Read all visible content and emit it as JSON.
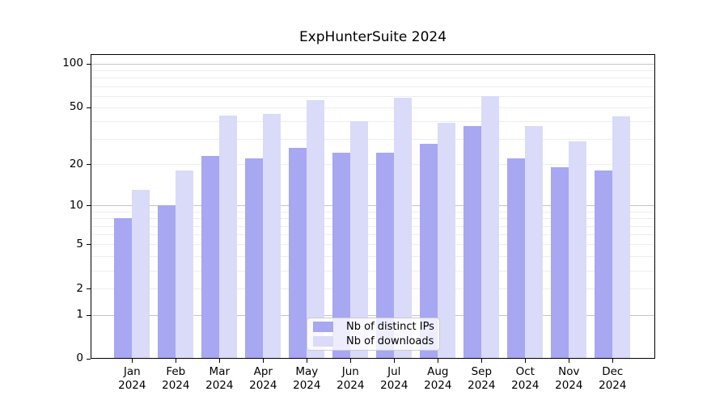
{
  "chart_data": {
    "type": "bar",
    "title": "ExpHunterSuite 2024",
    "scale": "log1p",
    "categories": [
      "Jan 2024",
      "Feb 2024",
      "Mar 2024",
      "Apr 2024",
      "May 2024",
      "Jun 2024",
      "Jul 2024",
      "Aug 2024",
      "Sep 2024",
      "Oct 2024",
      "Nov 2024",
      "Dec 2024"
    ],
    "series": [
      {
        "name": "Nb of distinct IPs",
        "color": "#a7a7f2",
        "values": [
          8,
          10,
          23,
          22,
          26,
          24,
          24,
          28,
          37,
          22,
          19,
          18
        ]
      },
      {
        "name": "Nb of downloads",
        "color": "#dadaf9",
        "values": [
          13,
          18,
          44,
          45,
          56,
          40,
          58,
          39,
          60,
          37,
          29,
          43
        ]
      }
    ],
    "xlabel": "",
    "ylabel": "",
    "ylim": [
      0,
      117
    ],
    "y_ticks": [
      100,
      50,
      20,
      10,
      5,
      2,
      1,
      0
    ],
    "y_major_gridlines": [
      1,
      10,
      100
    ],
    "y_minor_gridlines": [
      2,
      3,
      4,
      5,
      6,
      7,
      8,
      9,
      20,
      30,
      40,
      50,
      60,
      70,
      80,
      90
    ],
    "grid": "on",
    "legend_position": "lower center",
    "colors": {
      "grid_major": "#c4c4c4",
      "grid_minor": "#ededed",
      "axis": "#000000",
      "legend_border": "#cccccc"
    }
  }
}
